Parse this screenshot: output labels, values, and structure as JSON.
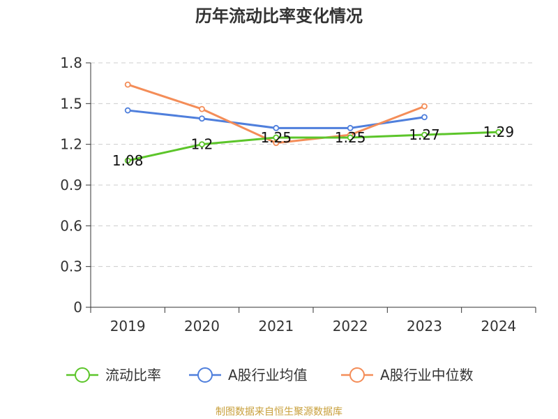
{
  "chart_data": {
    "type": "line",
    "title": "历年流动比率变化情况",
    "categories": [
      "2019",
      "2020",
      "2021",
      "2022",
      "2023",
      "2024"
    ],
    "ylim": [
      0,
      1.8
    ],
    "yticks": [
      "0",
      "0.3",
      "0.6",
      "0.9",
      "1.2",
      "1.5",
      "1.8"
    ],
    "grid": true,
    "legend_position": "bottom",
    "series": [
      {
        "name": "流动比率",
        "color": "#5cc52a",
        "values": [
          1.08,
          1.2,
          1.25,
          1.25,
          1.27,
          1.29
        ],
        "labels": [
          "1.08",
          "1.2",
          "1.25",
          "1.25",
          "1.27",
          "1.29"
        ]
      },
      {
        "name": "A股行业均值",
        "color": "#4f7fdc",
        "values": [
          1.45,
          1.39,
          1.32,
          1.32,
          1.4,
          null
        ]
      },
      {
        "name": "A股行业中位数",
        "color": "#f48d58",
        "values": [
          1.64,
          1.46,
          1.21,
          1.27,
          1.48,
          null
        ]
      }
    ]
  },
  "source": {
    "text": "制图数据来自恒生聚源数据库",
    "color": "#c8a03c"
  }
}
